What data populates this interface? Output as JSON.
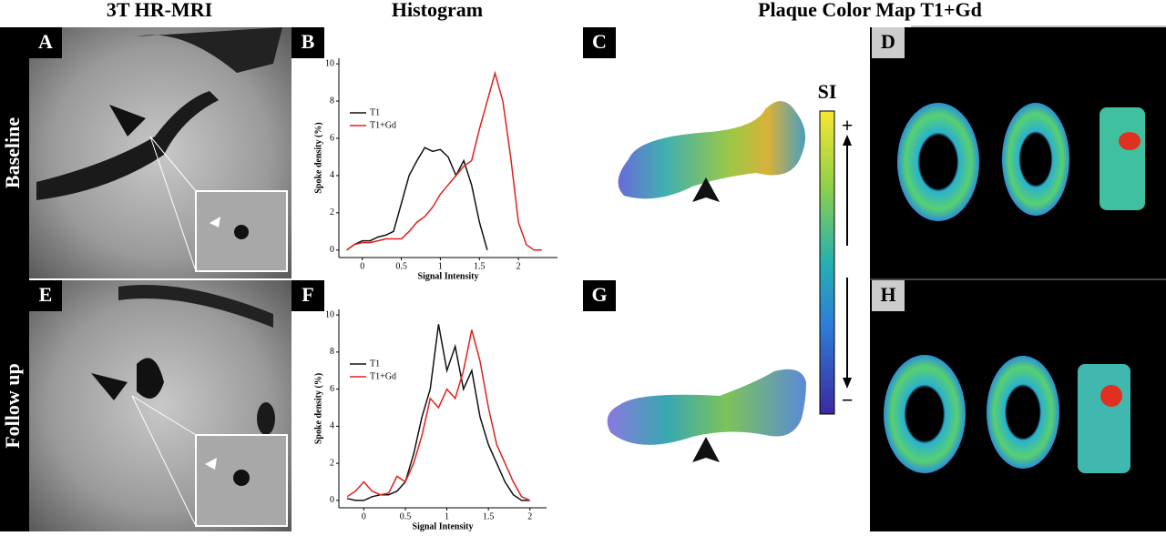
{
  "column_headers": [
    "3T HR-MRI",
    "Histogram",
    "Plaque Color Map T1+Gd"
  ],
  "row_labels": [
    "Baseline",
    "Follow up"
  ],
  "panel_letters": [
    "A",
    "B",
    "C",
    "D",
    "E",
    "F",
    "G",
    "H"
  ],
  "colorbar": {
    "label": "SI",
    "high": "+",
    "low": "−"
  },
  "chart_data": [
    {
      "type": "line",
      "xlabel": "Signal Intensity",
      "ylabel": "Spoke density (%)",
      "x": [
        -0.2,
        -0.1,
        0,
        0.1,
        0.2,
        0.3,
        0.4,
        0.5,
        0.6,
        0.7,
        0.8,
        0.9,
        1.0,
        1.1,
        1.2,
        1.3,
        1.4,
        1.5,
        1.6,
        1.7,
        1.8,
        1.9,
        2.0,
        2.1,
        2.2,
        2.3
      ],
      "series": [
        {
          "name": "T1",
          "color": "#111111",
          "values": [
            0,
            0.3,
            0.5,
            0.5,
            0.7,
            0.8,
            1.0,
            2.5,
            4.0,
            4.8,
            5.5,
            5.3,
            5.4,
            5.0,
            4.0,
            4.8,
            3.5,
            1.5,
            0,
            null,
            null,
            null,
            null,
            null,
            null,
            null
          ]
        },
        {
          "name": "T1+Gd",
          "color": "#e0201b",
          "values": [
            0,
            0.3,
            0.4,
            0.4,
            0.5,
            0.6,
            0.6,
            0.6,
            1.0,
            1.5,
            1.8,
            2.3,
            3.0,
            3.5,
            4.0,
            4.5,
            4.8,
            6.5,
            8.0,
            9.5,
            8.0,
            5.0,
            1.5,
            0.3,
            0,
            0
          ]
        }
      ],
      "xlim": [
        -0.3,
        2.5
      ],
      "ylim": [
        -0.4,
        10.3
      ],
      "xticks": [
        0,
        0.5,
        1,
        1.5,
        2
      ],
      "yticks": [
        0,
        2,
        4,
        6,
        8,
        10
      ]
    },
    {
      "type": "line",
      "xlabel": "Signal Intensity",
      "ylabel": "Spoke density (%)",
      "x": [
        -0.2,
        -0.1,
        0,
        0.1,
        0.2,
        0.3,
        0.4,
        0.5,
        0.6,
        0.7,
        0.8,
        0.9,
        1.0,
        1.1,
        1.2,
        1.3,
        1.4,
        1.5,
        1.6,
        1.7,
        1.8,
        1.9,
        2.0
      ],
      "series": [
        {
          "name": "T1",
          "color": "#111111",
          "values": [
            0.1,
            0,
            0,
            0.2,
            0.3,
            0.3,
            0.5,
            1.0,
            2.5,
            4.5,
            6.0,
            9.5,
            7.0,
            8.3,
            6.0,
            7.0,
            4.5,
            3.0,
            2.0,
            1.0,
            0.3,
            0,
            0
          ]
        },
        {
          "name": "T1+Gd",
          "color": "#e0201b",
          "values": [
            0.2,
            0.5,
            1.0,
            0.5,
            0.3,
            0.4,
            1.3,
            1.0,
            2.0,
            3.5,
            5.5,
            5.0,
            6.0,
            5.5,
            7.0,
            9.2,
            7.5,
            5.0,
            3.0,
            2.0,
            1.0,
            0.2,
            0
          ]
        }
      ],
      "xlim": [
        -0.3,
        2.2
      ],
      "ylim": [
        -0.4,
        10.3
      ],
      "xticks": [
        0,
        0.5,
        1,
        1.5,
        2
      ],
      "yticks": [
        0,
        2,
        4,
        6,
        8,
        10
      ]
    }
  ]
}
